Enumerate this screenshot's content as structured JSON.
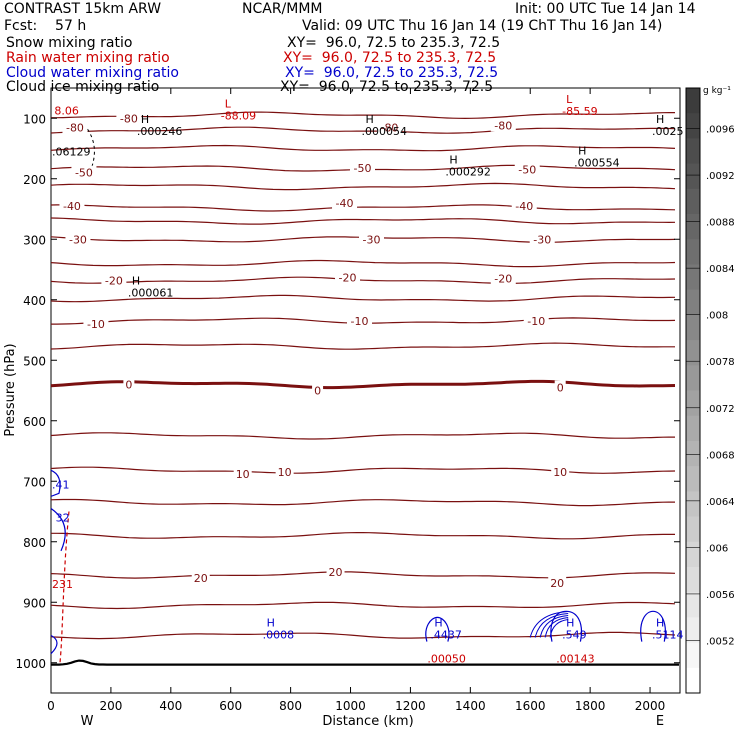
{
  "header": {
    "left1": "CONTRAST 15km ARW",
    "left2": "Fcst:    57 h",
    "center1": "NCAR/MMM",
    "init": "Init: 00 UTC Tue 14 Jan 14",
    "valid": "Valid: 09 UTC Thu 16 Jan 14 (19 ChT Thu 16 Jan 14)"
  },
  "fields": [
    {
      "name": "Snow mixing ratio",
      "xy": "XY=  96.0, 72.5 to 235.3, 72.5",
      "color": "#000000"
    },
    {
      "name": "Rain water mixing ratio",
      "xy": "XY=  96.0, 72.5 to 235.3, 72.5",
      "color": "#cc0000"
    },
    {
      "name": "Cloud water mixing ratio",
      "xy": "XY=  96.0, 72.5 to 235.3, 72.5",
      "color": "#0000cc"
    },
    {
      "name": "Cloud ice mixing ratio",
      "xy": "XY=  96.0, 72.5 to 235.3, 72.5",
      "color": "#000000"
    }
  ],
  "chart_data": {
    "type": "line",
    "title": "",
    "xlabel": "Distance (km)",
    "ylabel": "Pressure (hPa)",
    "xlim": [
      0,
      2100
    ],
    "ylim": [
      1050,
      50
    ],
    "x_ticks": [
      0,
      200,
      400,
      600,
      800,
      1000,
      1200,
      1400,
      1600,
      1800,
      2000
    ],
    "y_ticks": [
      100,
      200,
      300,
      400,
      500,
      600,
      700,
      800,
      900,
      1000
    ],
    "x_end_labels": {
      "left": "W",
      "right": "E"
    },
    "temperature_contours": [
      {
        "label": "-80",
        "p": 95
      },
      {
        "label": "-70",
        "p": 120
      },
      {
        "label": "-60",
        "p": 150
      },
      {
        "label": "-50",
        "p": 183
      },
      {
        "label": "-45",
        "p": 213
      },
      {
        "label": "-40",
        "p": 248
      },
      {
        "label": "-35",
        "p": 270
      },
      {
        "label": "-30",
        "p": 300
      },
      {
        "label": "-25",
        "p": 340
      },
      {
        "label": "-20",
        "p": 368
      },
      {
        "label": "-15",
        "p": 398
      },
      {
        "label": "-10",
        "p": 435
      },
      {
        "label": "-5",
        "p": 477
      },
      {
        "label": "0",
        "p": 540
      },
      {
        "label": "5",
        "p": 625
      },
      {
        "label": "10",
        "p": 682
      },
      {
        "label": "15",
        "p": 735
      },
      {
        "label": "20",
        "p": 790
      },
      {
        "label": "25",
        "p": 855
      },
      {
        "label": "30",
        "p": 905
      },
      {
        "label": "35",
        "p": 955
      }
    ],
    "contour_labels": [
      {
        "text": "-80",
        "x": 260,
        "p": 100
      },
      {
        "text": "-80",
        "x": 1130,
        "p": 115
      },
      {
        "text": "-80",
        "x": 1510,
        "p": 112
      },
      {
        "text": "-80",
        "x": 80,
        "p": 115
      },
      {
        "text": "-50",
        "x": 110,
        "p": 190
      },
      {
        "text": "-50",
        "x": 1040,
        "p": 182
      },
      {
        "text": "-50",
        "x": 1590,
        "p": 185
      },
      {
        "text": "-40",
        "x": 70,
        "p": 245
      },
      {
        "text": "-40",
        "x": 980,
        "p": 240
      },
      {
        "text": "-40",
        "x": 1580,
        "p": 245
      },
      {
        "text": "-30",
        "x": 90,
        "p": 300
      },
      {
        "text": "-30",
        "x": 1070,
        "p": 300
      },
      {
        "text": "-30",
        "x": 1640,
        "p": 300
      },
      {
        "text": "-20",
        "x": 210,
        "p": 368
      },
      {
        "text": "-20",
        "x": 990,
        "p": 363
      },
      {
        "text": "-20",
        "x": 1510,
        "p": 365
      },
      {
        "text": "-10",
        "x": 150,
        "p": 440
      },
      {
        "text": "-10",
        "x": 1030,
        "p": 435
      },
      {
        "text": "-10",
        "x": 1620,
        "p": 435
      },
      {
        "text": "0",
        "x": 260,
        "p": 540
      },
      {
        "text": "0",
        "x": 890,
        "p": 550
      },
      {
        "text": "0",
        "x": 1700,
        "p": 545
      },
      {
        "text": "10",
        "x": 640,
        "p": 688
      },
      {
        "text": "10",
        "x": 780,
        "p": 685
      },
      {
        "text": "10",
        "x": 1700,
        "p": 685
      },
      {
        "text": "20",
        "x": 500,
        "p": 860
      },
      {
        "text": "20",
        "x": 950,
        "p": 850
      },
      {
        "text": "20",
        "x": 1690,
        "p": 868
      }
    ],
    "extrema": [
      {
        "letter": "L",
        "value": "-88.09",
        "x": 580,
        "p": 82,
        "color": "#cc0000"
      },
      {
        "letter": "L",
        "value": "-85.59",
        "x": 1720,
        "p": 75,
        "color": "#cc0000"
      },
      {
        "letter": "H",
        "value": ".000246",
        "x": 300,
        "p": 108,
        "color": "#000000"
      },
      {
        "letter": "H",
        "value": ".000054",
        "x": 1050,
        "p": 108,
        "color": "#000000"
      },
      {
        "letter": "H",
        "value": ".0025",
        "x": 2020,
        "p": 108,
        "color": "#000000"
      },
      {
        "letter": "H",
        "value": ".000554",
        "x": 1760,
        "p": 160,
        "color": "#000000"
      },
      {
        "letter": "H",
        "value": ".000292",
        "x": 1330,
        "p": 175,
        "color": "#000000"
      },
      {
        "letter": "H",
        "value": ".000061",
        "x": 270,
        "p": 375,
        "color": "#000000"
      },
      {
        "letter": "H",
        "value": ".0008",
        "x": 720,
        "p": 940,
        "color": "#0000cc"
      },
      {
        "letter": "H",
        "value": ".4437",
        "x": 1280,
        "p": 940,
        "color": "#0000cc"
      },
      {
        "letter": "H",
        "value": ".549",
        "x": 1720,
        "p": 940,
        "color": "#0000cc"
      },
      {
        "letter": "H",
        "value": ".5114",
        "x": 2020,
        "p": 940,
        "color": "#0000cc"
      },
      {
        "letter": "",
        "value": ".00050",
        "x": 1270,
        "p": 980,
        "color": "#cc0000"
      },
      {
        "letter": "",
        "value": ".00143",
        "x": 1700,
        "p": 980,
        "color": "#cc0000"
      }
    ],
    "edge_labels": [
      {
        "text": "8.06",
        "x": 8,
        "p": 87,
        "color": "#cc0000"
      },
      {
        "text": ".06129",
        "x": 0,
        "p": 155,
        "color": "#000000"
      },
      {
        "text": ".41",
        "x": 0,
        "p": 705,
        "color": "#0000cc"
      },
      {
        "text": "32",
        "x": 12,
        "p": 760,
        "color": "#0000cc"
      },
      {
        "text": "231",
        "x": 0,
        "p": 870,
        "color": "#cc0000"
      }
    ],
    "colorbar": {
      "unit": "g kg⁻¹",
      "labels": [
        ".0096",
        ".0092",
        ".0088",
        ".0084",
        ".008",
        ".0078",
        ".0072",
        ".0068",
        ".0064",
        ".006",
        ".0056",
        ".0052"
      ]
    }
  }
}
